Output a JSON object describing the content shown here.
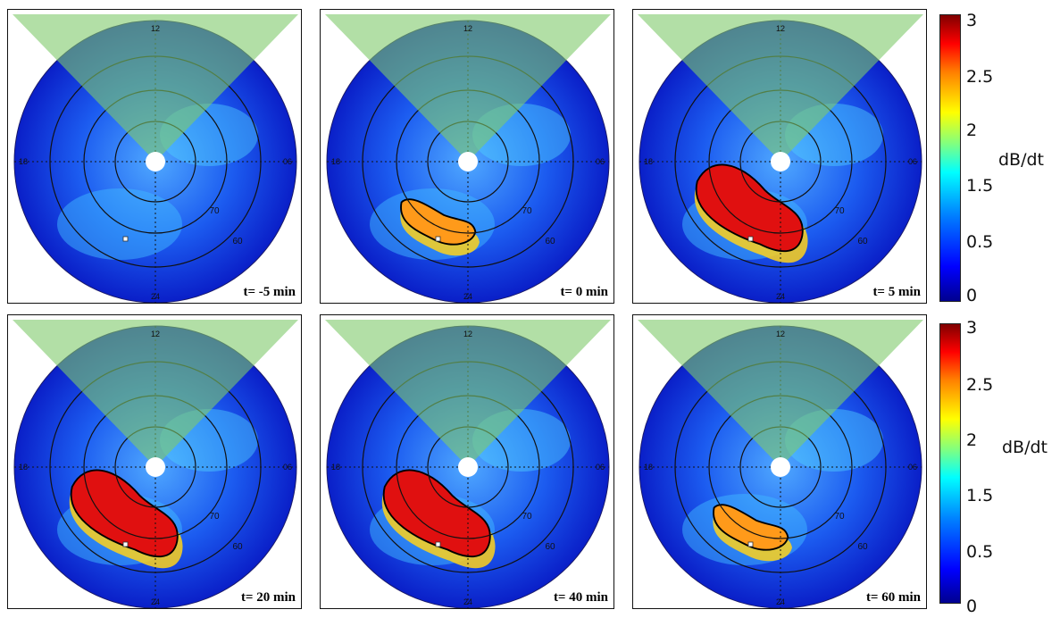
{
  "chart_data": [
    {
      "type": "heatmap",
      "time_label": "t= -5 min",
      "mlt_labels": [
        "12",
        "06",
        "18",
        "24"
      ],
      "mlat_labels": [
        "70",
        "60"
      ],
      "intensity_region": null
    },
    {
      "type": "heatmap",
      "time_label": "t= 0 min",
      "mlt_labels": [
        "12",
        "06",
        "18",
        "24"
      ],
      "mlat_labels": [
        "70",
        "60"
      ],
      "intensity_region": "weak"
    },
    {
      "type": "heatmap",
      "time_label": "t= 5 min",
      "mlt_labels": [
        "12",
        "06",
        "18",
        "24"
      ],
      "mlat_labels": [
        "70",
        "60"
      ],
      "intensity_region": "strong"
    },
    {
      "type": "heatmap",
      "time_label": "t= 20 min",
      "mlt_labels": [
        "12",
        "06",
        "18",
        "24"
      ],
      "mlat_labels": [
        "70",
        "60"
      ],
      "intensity_region": "strong"
    },
    {
      "type": "heatmap",
      "time_label": "t= 40 min",
      "mlt_labels": [
        "12",
        "06",
        "18",
        "24"
      ],
      "mlat_labels": [
        "70",
        "60"
      ],
      "intensity_region": "strong"
    },
    {
      "type": "heatmap",
      "time_label": "t= 60 min",
      "mlt_labels": [
        "12",
        "06",
        "18",
        "24"
      ],
      "mlat_labels": [
        "70",
        "60"
      ],
      "intensity_region": "weak"
    }
  ],
  "colorbar": {
    "unit": "dB/dt",
    "ticks": [
      "3",
      "2.5",
      "2",
      "1.5",
      "0.5",
      "0"
    ]
  }
}
